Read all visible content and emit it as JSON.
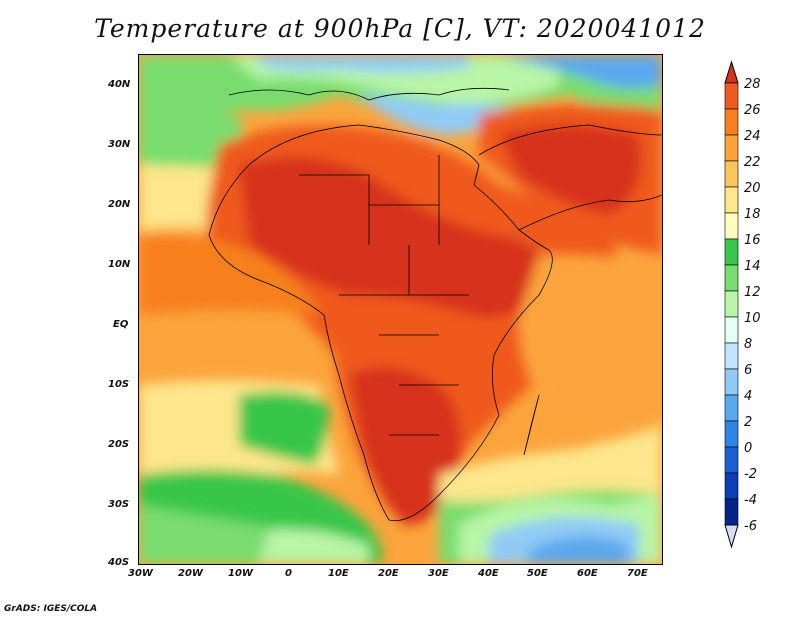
{
  "title": "Temperature at 900hPa [C], VT: 2020041012",
  "footer": "GrADS: IGES/COLA",
  "lat_ticks": [
    "40N",
    "30N",
    "20N",
    "10N",
    "EQ",
    "10S",
    "20S",
    "30S",
    "40S"
  ],
  "lon_ticks": [
    "30W",
    "20W",
    "10W",
    "0",
    "10E",
    "20E",
    "30E",
    "40E",
    "50E",
    "60E",
    "70E"
  ],
  "colorbar": {
    "levels": [
      "28",
      "26",
      "24",
      "22",
      "20",
      "18",
      "16",
      "14",
      "12",
      "10",
      "8",
      "6",
      "4",
      "2",
      "0",
      "-2",
      "-4",
      "-6"
    ],
    "colors": [
      "#d7301f",
      "#ef5a1e",
      "#f7801e",
      "#fba43c",
      "#fcc55a",
      "#fde68b",
      "#fffcc0",
      "#39c64a",
      "#78dd6e",
      "#b8f5a6",
      "#e6fff6",
      "#bfe4fb",
      "#90cbf5",
      "#5aa8ee",
      "#2f85e3",
      "#1a60d0",
      "#0c3eb5",
      "#06238a",
      "#d6dcff"
    ]
  },
  "chart_data": {
    "type": "heatmap",
    "variable": "Temperature at 900hPa",
    "units": "C",
    "valid_time": "2020041012",
    "lon_range": [
      "30W",
      "75E"
    ],
    "lat_range": [
      "40S",
      "45N"
    ],
    "color_range": [
      -6,
      28
    ]
  }
}
